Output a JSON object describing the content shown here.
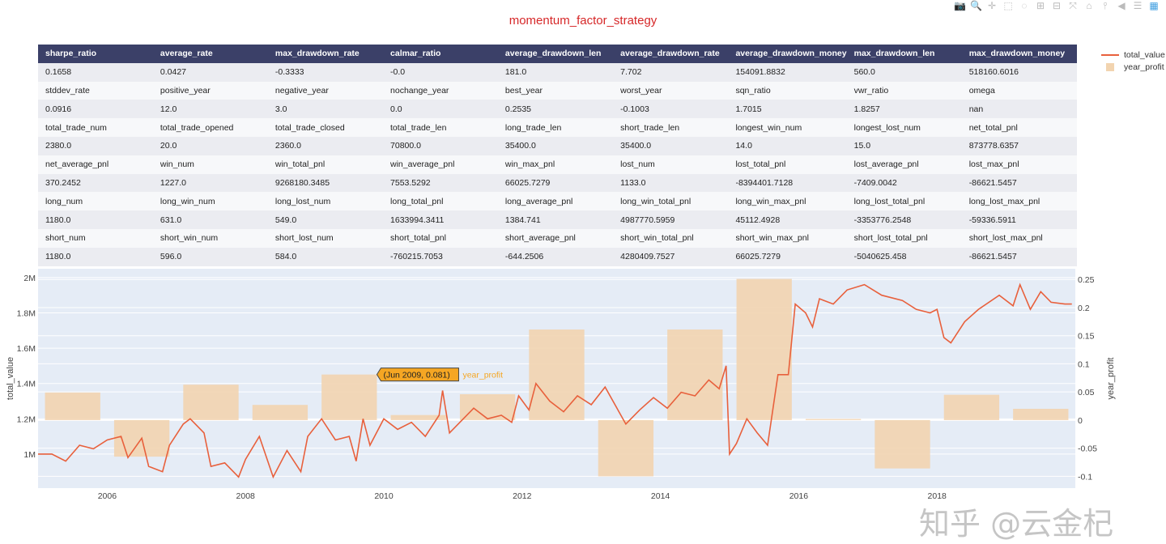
{
  "title": "momentum_factor_strategy",
  "toolbar": [
    "camera-icon",
    "zoom-icon",
    "pan-icon",
    "box-select-icon",
    "lasso-icon",
    "zoom-in-icon",
    "zoom-out-icon",
    "autoscale-icon",
    "reset-axes-icon",
    "spike-lines-icon",
    "hover-closest-icon",
    "hover-compare-icon",
    "plotly-logo-icon"
  ],
  "table": {
    "header": [
      "sharpe_ratio",
      "average_rate",
      "max_drawdown_rate",
      "calmar_ratio",
      "average_drawdown_len",
      "average_drawdown_rate",
      "average_drawdown_money",
      "max_drawdown_len",
      "max_drawdown_money"
    ],
    "rows": [
      [
        "0.1658",
        "0.0427",
        "-0.3333",
        "-0.0",
        "181.0",
        "7.702",
        "154091.8832",
        "560.0",
        "518160.6016"
      ],
      [
        "stddev_rate",
        "positive_year",
        "negative_year",
        "nochange_year",
        "best_year",
        "worst_year",
        "sqn_ratio",
        "vwr_ratio",
        "omega"
      ],
      [
        "0.0916",
        "12.0",
        "3.0",
        "0.0",
        "0.2535",
        "-0.1003",
        "1.7015",
        "1.8257",
        "nan"
      ],
      [
        "total_trade_num",
        "total_trade_opened",
        "total_trade_closed",
        "total_trade_len",
        "long_trade_len",
        "short_trade_len",
        "longest_win_num",
        "longest_lost_num",
        "net_total_pnl"
      ],
      [
        "2380.0",
        "20.0",
        "2360.0",
        "70800.0",
        "35400.0",
        "35400.0",
        "14.0",
        "15.0",
        "873778.6357"
      ],
      [
        "net_average_pnl",
        "win_num",
        "win_total_pnl",
        "win_average_pnl",
        "win_max_pnl",
        "lost_num",
        "lost_total_pnl",
        "lost_average_pnl",
        "lost_max_pnl"
      ],
      [
        "370.2452",
        "1227.0",
        "9268180.3485",
        "7553.5292",
        "66025.7279",
        "1133.0",
        "-8394401.7128",
        "-7409.0042",
        "-86621.5457"
      ],
      [
        "long_num",
        "long_win_num",
        "long_lost_num",
        "long_total_pnl",
        "long_average_pnl",
        "long_win_total_pnl",
        "long_win_max_pnl",
        "long_lost_total_pnl",
        "long_lost_max_pnl"
      ],
      [
        "1180.0",
        "631.0",
        "549.0",
        "1633994.3411",
        "1384.741",
        "4987770.5959",
        "45112.4928",
        "-3353776.2548",
        "-59336.5911"
      ],
      [
        "short_num",
        "short_win_num",
        "short_lost_num",
        "short_total_pnl",
        "short_average_pnl",
        "short_win_total_pnl",
        "short_win_max_pnl",
        "short_lost_total_pnl",
        "short_lost_max_pnl"
      ],
      [
        "1180.0",
        "596.0",
        "584.0",
        "-760215.7053",
        "-644.2506",
        "4280409.7527",
        "66025.7279",
        "-5040625.458",
        "-86621.5457"
      ]
    ]
  },
  "legend": {
    "line": "total_value",
    "bar": "year_profit"
  },
  "tooltip": "(Jun 2009, 0.081)",
  "watermark": "知乎 @云金杞",
  "chart_data": {
    "type": "line+bar",
    "xlabel": "",
    "ylabel": "total_value",
    "y2label": "year_profit",
    "xlim": [
      2005.0,
      2020.0
    ],
    "ylim": [
      807000,
      2050000
    ],
    "y2lim": [
      -0.121,
      0.269
    ],
    "xticks": [
      "2006",
      "2008",
      "2010",
      "2012",
      "2014",
      "2016",
      "2018"
    ],
    "yticks": [
      {
        "v": 1000000,
        "label": "1M"
      },
      {
        "v": 1200000,
        "label": "1.2M"
      },
      {
        "v": 1400000,
        "label": "1.4M"
      },
      {
        "v": 1600000,
        "label": "1.6M"
      },
      {
        "v": 1800000,
        "label": "1.8M"
      },
      {
        "v": 2000000,
        "label": "2M"
      }
    ],
    "y2ticks": [
      "-0.1",
      "-0.05",
      "0",
      "0.05",
      "0.1",
      "0.15",
      "0.2",
      "0.25"
    ],
    "grid": true,
    "legend_position": "top-right",
    "colors": {
      "line": "#e8603c",
      "bar": "#f2d4b0",
      "plot_bg": "#e5ecf6",
      "tooltip": "#f5a623"
    },
    "series": [
      {
        "name": "total_value",
        "type": "line",
        "x": [
          2005.0,
          2005.2,
          2005.4,
          2005.6,
          2005.8,
          2006.0,
          2006.2,
          2006.3,
          2006.5,
          2006.6,
          2006.8,
          2006.9,
          2007.1,
          2007.2,
          2007.4,
          2007.5,
          2007.7,
          2007.9,
          2008.0,
          2008.2,
          2008.4,
          2008.6,
          2008.8,
          2008.9,
          2009.1,
          2009.3,
          2009.5,
          2009.6,
          2009.7,
          2009.8,
          2010.0,
          2010.2,
          2010.4,
          2010.6,
          2010.8,
          2010.85,
          2010.95,
          2011.1,
          2011.3,
          2011.5,
          2011.7,
          2011.85,
          2011.95,
          2012.1,
          2012.2,
          2012.4,
          2012.6,
          2012.8,
          2013.0,
          2013.2,
          2013.4,
          2013.5,
          2013.7,
          2013.9,
          2014.1,
          2014.3,
          2014.5,
          2014.7,
          2014.85,
          2014.95,
          2015.0,
          2015.1,
          2015.25,
          2015.4,
          2015.55,
          2015.7,
          2015.85,
          2015.95,
          2016.1,
          2016.2,
          2016.3,
          2016.5,
          2016.7,
          2016.95,
          2017.2,
          2017.5,
          2017.7,
          2017.9,
          2018.0,
          2018.1,
          2018.2,
          2018.4,
          2018.6,
          2018.9,
          2019.1,
          2019.2,
          2019.35,
          2019.5,
          2019.65,
          2019.85,
          2019.95
        ],
        "y": [
          1000000,
          1000000,
          960000,
          1050000,
          1030000,
          1080000,
          1100000,
          980000,
          1090000,
          930000,
          900000,
          1050000,
          1170000,
          1200000,
          1120000,
          930000,
          950000,
          870000,
          970000,
          1100000,
          870000,
          1020000,
          900000,
          1100000,
          1200000,
          1080000,
          1100000,
          960000,
          1200000,
          1050000,
          1200000,
          1140000,
          1180000,
          1100000,
          1220000,
          1360000,
          1120000,
          1180000,
          1260000,
          1200000,
          1220000,
          1180000,
          1330000,
          1250000,
          1400000,
          1300000,
          1240000,
          1330000,
          1280000,
          1380000,
          1240000,
          1170000,
          1250000,
          1320000,
          1260000,
          1350000,
          1330000,
          1420000,
          1370000,
          1500000,
          1000000,
          1060000,
          1200000,
          1120000,
          1050000,
          1450000,
          1450000,
          1850000,
          1800000,
          1720000,
          1880000,
          1850000,
          1930000,
          1960000,
          1900000,
          1870000,
          1820000,
          1800000,
          1820000,
          1660000,
          1630000,
          1750000,
          1820000,
          1900000,
          1840000,
          1960000,
          1820000,
          1920000,
          1860000,
          1850000,
          1850000
        ]
      },
      {
        "name": "year_profit",
        "type": "bar",
        "axis": "y2",
        "categories": [
          "2005",
          "2006",
          "2007",
          "2008",
          "2009",
          "2010",
          "2011",
          "2012",
          "2013",
          "2014",
          "2015",
          "2016",
          "2017",
          "2018",
          "2019"
        ],
        "values": [
          0.049,
          -0.065,
          0.063,
          0.027,
          0.081,
          0.009,
          0.046,
          0.161,
          -0.1,
          0.161,
          0.251,
          0.002,
          -0.086,
          0.045,
          0.02
        ]
      }
    ]
  }
}
